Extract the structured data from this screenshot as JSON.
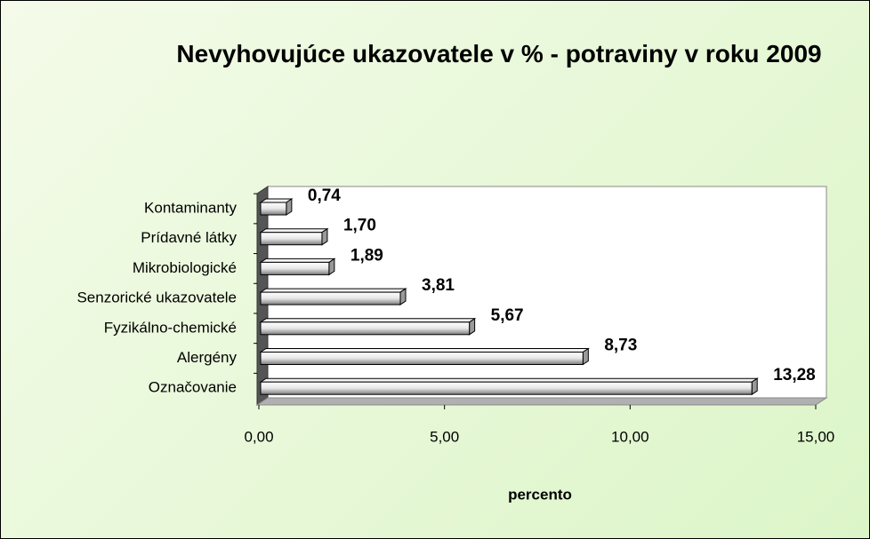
{
  "chart_data": {
    "type": "bar",
    "orientation": "horizontal",
    "three_d": true,
    "title": "Nevyhovujúce ukazovatele v % - potraviny v roku 2009",
    "x_label": "percento",
    "categories": [
      "Kontaminanty",
      "Prídavné látky",
      "Mikrobiologické",
      "Senzorické ukazovatele",
      "Fyzikálno-chemické",
      "Alergény",
      "Označovanie"
    ],
    "values": [
      0.74,
      1.7,
      1.89,
      3.81,
      5.67,
      8.73,
      13.28
    ],
    "value_labels": [
      "0,74",
      "1,70",
      "1,89",
      "3,81",
      "5,67",
      "8,73",
      "13,28"
    ],
    "color": "#d9d9d9",
    "xlim": [
      0,
      15
    ],
    "xticks": [
      {
        "value": 0,
        "label": "0,00"
      },
      {
        "value": 5,
        "label": "5,00"
      },
      {
        "value": 10,
        "label": "10,00"
      },
      {
        "value": 15,
        "label": "15,00"
      }
    ]
  }
}
